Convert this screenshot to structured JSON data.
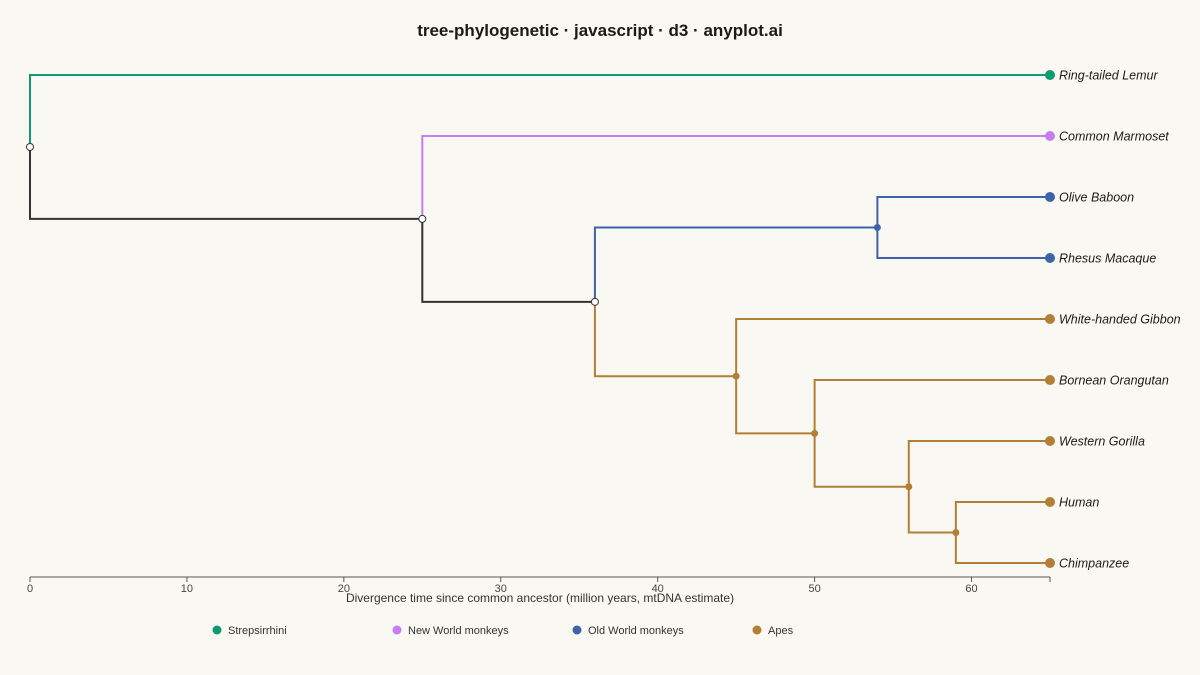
{
  "chart_data": {
    "type": "dendrogram",
    "title": "tree-phylogenetic · javascript · d3 · anyplot.ai",
    "xlabel": "Divergence time since common ancestor (million years, mtDNA estimate)",
    "xlim": [
      0,
      65
    ],
    "xticks": [
      "0",
      "10",
      "20",
      "30",
      "40",
      "50",
      "60"
    ],
    "groups": [
      {
        "name": "Strepsirrhini",
        "color": "#0e9a73"
      },
      {
        "name": "New World monkeys",
        "color": "#c57df0"
      },
      {
        "name": "Old World monkeys",
        "color": "#3f63a8"
      },
      {
        "name": "Apes",
        "color": "#b37e36"
      }
    ],
    "leaves": [
      {
        "name": "Ring-tailed Lemur",
        "group": "Strepsirrhini"
      },
      {
        "name": "Common Marmoset",
        "group": "New World monkeys"
      },
      {
        "name": "Olive Baboon",
        "group": "Old World monkeys"
      },
      {
        "name": "Rhesus Macaque",
        "group": "Old World monkeys"
      },
      {
        "name": "White-handed Gibbon",
        "group": "Apes"
      },
      {
        "name": "Bornean Orangutan",
        "group": "Apes"
      },
      {
        "name": "Western Gorilla",
        "group": "Apes"
      },
      {
        "name": "Human",
        "group": "Apes"
      },
      {
        "name": "Chimpanzee",
        "group": "Apes"
      }
    ],
    "nodes": [
      {
        "id": "root",
        "t": 0,
        "children": [
          "Ring-tailed Lemur",
          "anthropoids"
        ]
      },
      {
        "id": "anthropoids",
        "t": 25,
        "children": [
          "Common Marmoset",
          "catarrhines"
        ]
      },
      {
        "id": "catarrhines",
        "t": 36,
        "children": [
          "old-world",
          "apes"
        ]
      },
      {
        "id": "old-world",
        "t": 54,
        "children": [
          "Olive Baboon",
          "Rhesus Macaque"
        ]
      },
      {
        "id": "apes",
        "t": 45,
        "children": [
          "White-handed Gibbon",
          "great-apes"
        ]
      },
      {
        "id": "great-apes",
        "t": 50,
        "children": [
          "Bornean Orangutan",
          "african-apes"
        ]
      },
      {
        "id": "african-apes",
        "t": 56,
        "children": [
          "Western Gorilla",
          "human-chimp"
        ]
      },
      {
        "id": "human-chimp",
        "t": 59,
        "children": [
          "Human",
          "Chimpanzee"
        ]
      }
    ],
    "leaf_time": 65,
    "mixed_color": "#333333"
  }
}
